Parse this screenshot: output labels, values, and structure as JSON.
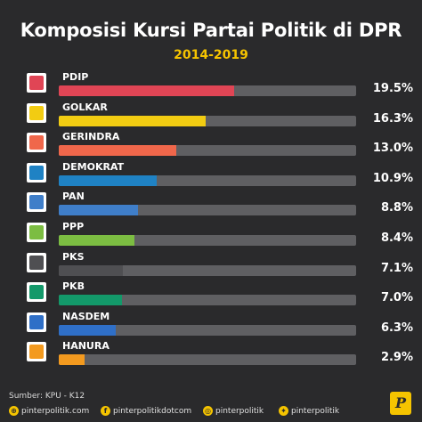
{
  "chart_data": {
    "type": "bar",
    "title": "Komposisi Kursi Partai Politik di DPR",
    "subtitle": "2014-2019",
    "categories": [
      "PDIP",
      "GOLKAR",
      "GERINDRA",
      "DEMOKRAT",
      "PAN",
      "PPP",
      "PKS",
      "PKB",
      "NASDEM",
      "HANURA"
    ],
    "values": [
      19.5,
      16.3,
      13.0,
      10.9,
      8.8,
      8.4,
      7.1,
      7.0,
      6.3,
      2.9
    ],
    "value_labels": [
      "19.5%",
      "16.3%",
      "13.0%",
      "10.9%",
      "8.8%",
      "8.4%",
      "7.1%",
      "7.0%",
      "6.3%",
      "2.9%"
    ],
    "ylim": [
      0,
      33
    ],
    "colors": [
      "#e04555",
      "#f2cc12",
      "#f0674b",
      "#1f82c4",
      "#3f7ec9",
      "#7cbd42",
      "#4f4f52",
      "#13996a",
      "#2f6fc7",
      "#f39a1f"
    ],
    "track_color": "#5f5f62"
  },
  "footer": {
    "source": "Sumber: KPU - K12",
    "social": [
      {
        "icon": "globe-icon",
        "glyph": "⊕",
        "text": "pinterpolitik.com"
      },
      {
        "icon": "facebook-icon",
        "glyph": "f",
        "text": "pinterpolitikdotcom"
      },
      {
        "icon": "instagram-icon",
        "glyph": "◎",
        "text": "pinterpolitik"
      },
      {
        "icon": "twitter-icon",
        "glyph": "✦",
        "text": "pinterpolitik"
      }
    ],
    "brand_letter": "P"
  },
  "colors": {
    "background": "#2a2a2c",
    "accent": "#f5c400"
  }
}
